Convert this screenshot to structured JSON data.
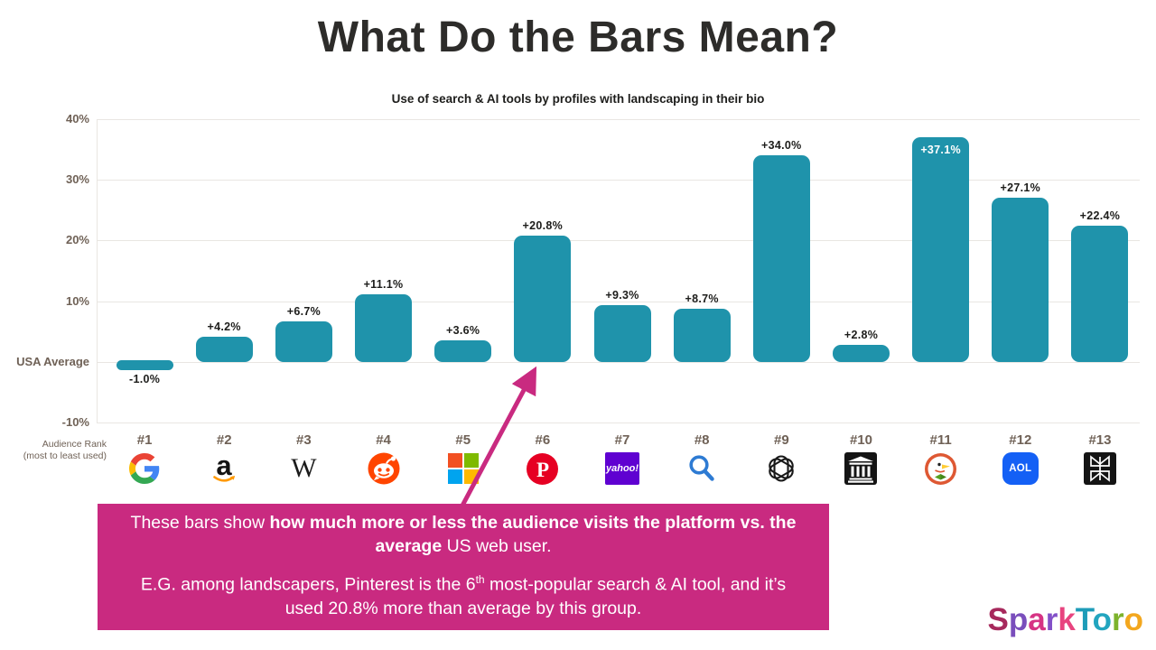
{
  "header": {
    "title": "What Do the Bars Mean?"
  },
  "colors": {
    "bar": "#1f93ab",
    "grid": "#e9e6e2",
    "axis_text": "#6f6156",
    "value_text": "#1d1d1b",
    "annotation_bg": "#c92a80",
    "arrow": "#c92a80",
    "title_text": "#2d2c2a"
  },
  "chart_data": {
    "type": "bar",
    "title": "Use of search & AI tools by profiles with landscaping in their bio",
    "ylim": [
      -10,
      40
    ],
    "grid": true,
    "categories": [
      "#1",
      "#2",
      "#3",
      "#4",
      "#5",
      "#6",
      "#7",
      "#8",
      "#9",
      "#10",
      "#11",
      "#12",
      "#13"
    ],
    "values": [
      -1.0,
      4.2,
      6.7,
      11.1,
      3.6,
      20.8,
      9.3,
      8.7,
      34.0,
      2.8,
      37.1,
      27.1,
      22.4
    ],
    "yticks": [
      {
        "value": 40,
        "label": "40%"
      },
      {
        "value": 30,
        "label": "30%"
      },
      {
        "value": 20,
        "label": "20%"
      },
      {
        "value": 10,
        "label": "10%"
      },
      {
        "value": 0,
        "label": "USA Average"
      },
      {
        "value": -10,
        "label": "-10%"
      }
    ],
    "platforms": [
      {
        "rank": "#1",
        "name": "Google",
        "icon": "google-icon",
        "value": -1.0,
        "label": "-1.0%"
      },
      {
        "rank": "#2",
        "name": "Amazon",
        "icon": "amazon-icon",
        "value": 4.2,
        "label": "+4.2%"
      },
      {
        "rank": "#3",
        "name": "Wikipedia",
        "icon": "wikipedia-icon",
        "value": 6.7,
        "label": "+6.7%"
      },
      {
        "rank": "#4",
        "name": "Reddit",
        "icon": "reddit-icon",
        "value": 11.1,
        "label": "+11.1%"
      },
      {
        "rank": "#5",
        "name": "Microsoft",
        "icon": "microsoft-icon",
        "value": 3.6,
        "label": "+3.6%"
      },
      {
        "rank": "#6",
        "name": "Pinterest",
        "icon": "pinterest-icon",
        "value": 20.8,
        "label": "+20.8%"
      },
      {
        "rank": "#7",
        "name": "Yahoo",
        "icon": "yahoo-icon",
        "value": 9.3,
        "label": "+9.3%"
      },
      {
        "rank": "#8",
        "name": "Search",
        "icon": "search-icon",
        "value": 8.7,
        "label": "+8.7%"
      },
      {
        "rank": "#9",
        "name": "ChatGPT",
        "icon": "openai-icon",
        "value": 34.0,
        "label": "+34.0%"
      },
      {
        "rank": "#10",
        "name": "Internet Archive",
        "icon": "internet-archive-icon",
        "value": 2.8,
        "label": "+2.8%"
      },
      {
        "rank": "#11",
        "name": "DuckDuckGo",
        "icon": "duckduckgo-icon",
        "value": 37.1,
        "label": "+37.1%",
        "label_inside": true
      },
      {
        "rank": "#12",
        "name": "AOL",
        "icon": "aol-icon",
        "value": 27.1,
        "label": "+27.1%"
      },
      {
        "rank": "#13",
        "name": "Perplexity",
        "icon": "perplexity-icon",
        "value": 22.4,
        "label": "+22.4%"
      }
    ],
    "axis_note_line1": "Audience Rank",
    "axis_note_line2": "(most to least used)"
  },
  "annotation": {
    "p1_pre": "These bars show ",
    "p1_bold": "how much more or less the audience visits the platform vs. the average",
    "p1_post": " US web user.",
    "p2_pre": "E.G. among landscapers, Pinterest is the 6",
    "p2_sup": "th",
    "p2_post": " most-popular search & AI tool, and it’s used 20.8% more than average by this group."
  },
  "yahoo_icon_text": "yahoo!",
  "aol_icon_text": "AOL",
  "wikipedia_icon_text": "W",
  "logo": {
    "letters": [
      {
        "ch": "S",
        "color": "#a7295c"
      },
      {
        "ch": "p",
        "color": "#7a4ebc"
      },
      {
        "ch": "a",
        "color": "#d63384"
      },
      {
        "ch": "r",
        "color": "#8350c8"
      },
      {
        "ch": "k",
        "color": "#e8447f"
      },
      {
        "ch": "T",
        "color": "#1e9cb8"
      },
      {
        "ch": "o",
        "color": "#22a5bf"
      },
      {
        "ch": "r",
        "color": "#7db32c"
      },
      {
        "ch": "o",
        "color": "#f3a71e"
      }
    ]
  }
}
